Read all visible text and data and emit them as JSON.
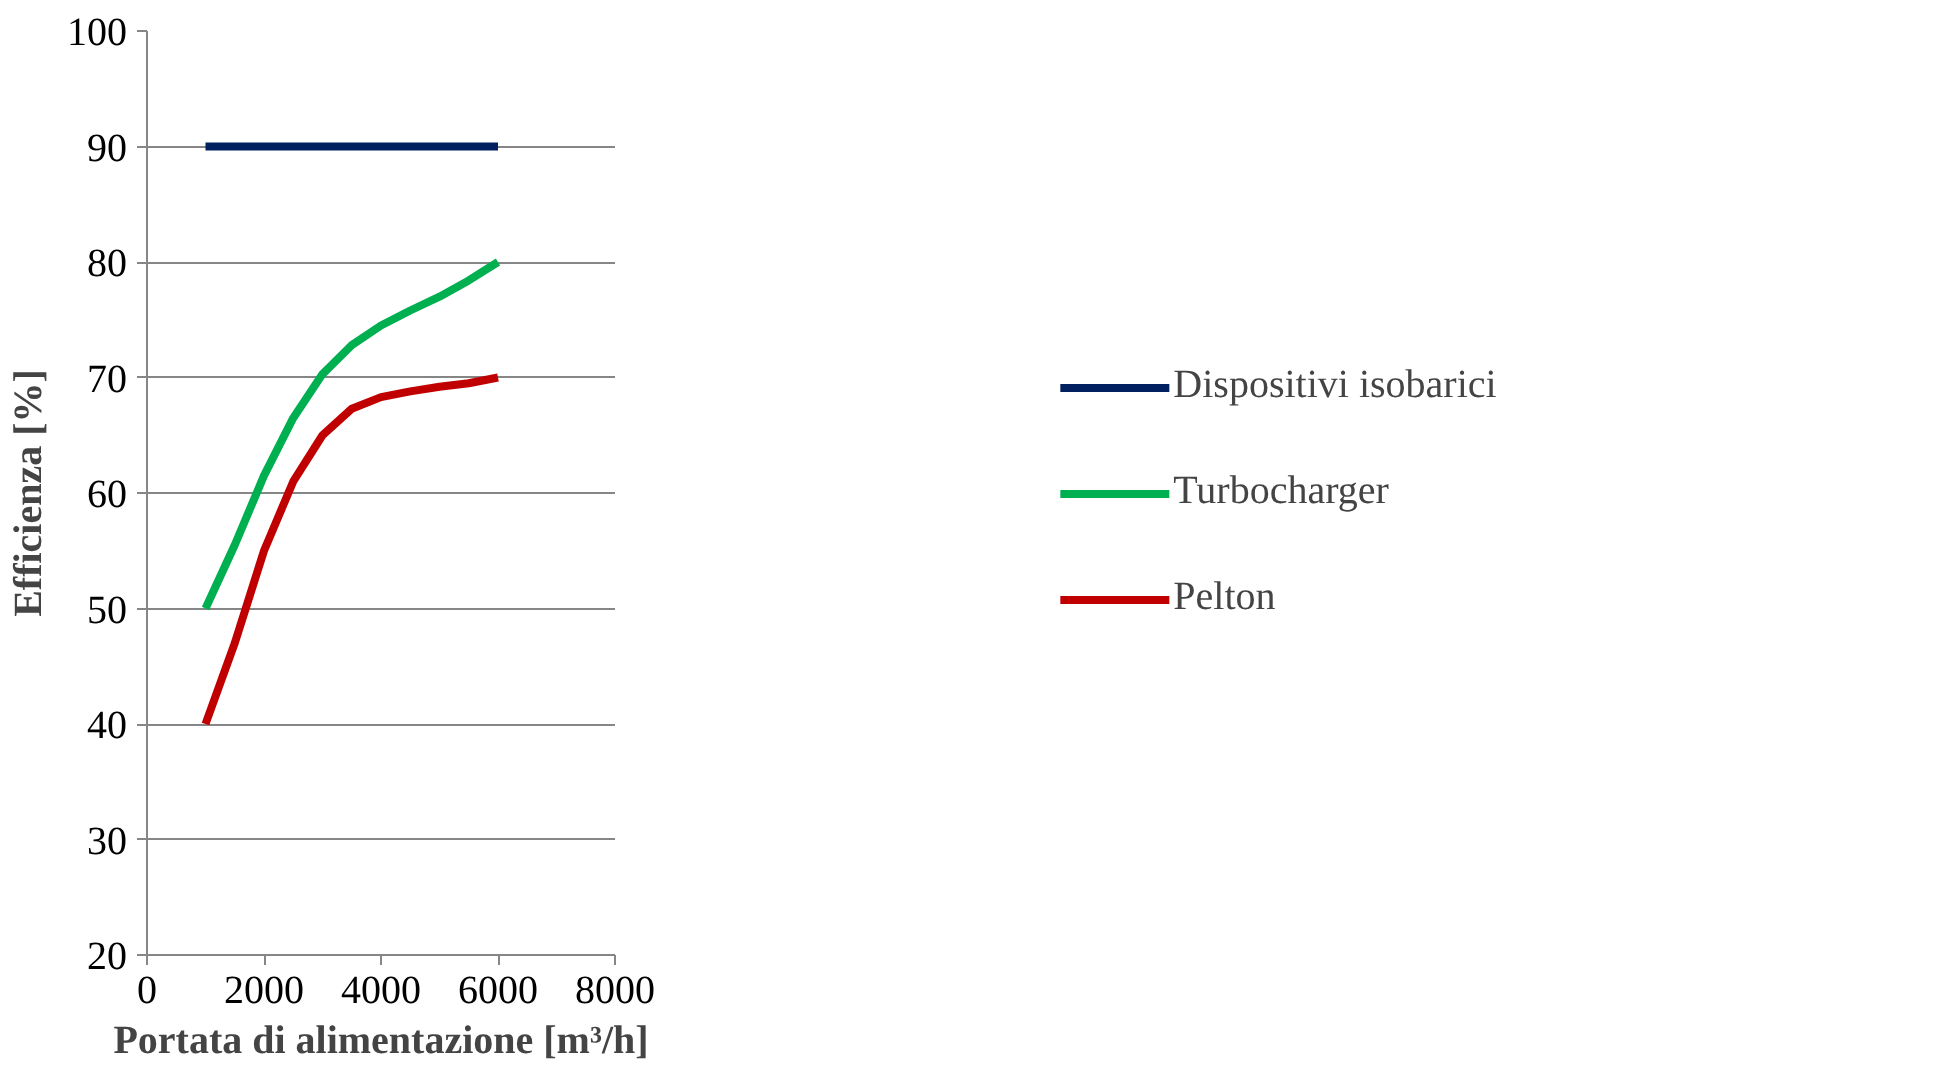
{
  "chart_data": {
    "type": "line",
    "xlabel": "Portata di alimentazione [m³/h]",
    "ylabel": "Efficienza [%]",
    "xlim": [
      0,
      8000
    ],
    "xticks": [
      0,
      2000,
      4000,
      6000,
      8000
    ],
    "ylim": [
      20,
      100
    ],
    "yticks": [
      20,
      30,
      40,
      50,
      60,
      70,
      80,
      90,
      100
    ],
    "grid": "y",
    "legend": "right",
    "marker": "none",
    "line_style": "solid",
    "series": [
      {
        "name": "Dispositivi isobarici",
        "color": "#002060",
        "x": [
          1000,
          6000
        ],
        "values": [
          90,
          90
        ]
      },
      {
        "name": "Turbocharger",
        "color": "#00b050",
        "x": [
          1000,
          1500,
          2000,
          2500,
          3000,
          3500,
          4000,
          4500,
          5000,
          5500,
          6000
        ],
        "values": [
          50,
          55.5,
          61.5,
          66.5,
          70.3,
          72.8,
          74.5,
          75.8,
          77,
          78.4,
          80
        ]
      },
      {
        "name": "Pelton",
        "color": "#c00000",
        "x": [
          1000,
          1500,
          2000,
          2500,
          3000,
          3500,
          4000,
          4500,
          5000,
          5500,
          6000
        ],
        "values": [
          40,
          47,
          55,
          61,
          65,
          67.3,
          68.3,
          68.8,
          69.2,
          69.5,
          70
        ]
      }
    ]
  }
}
